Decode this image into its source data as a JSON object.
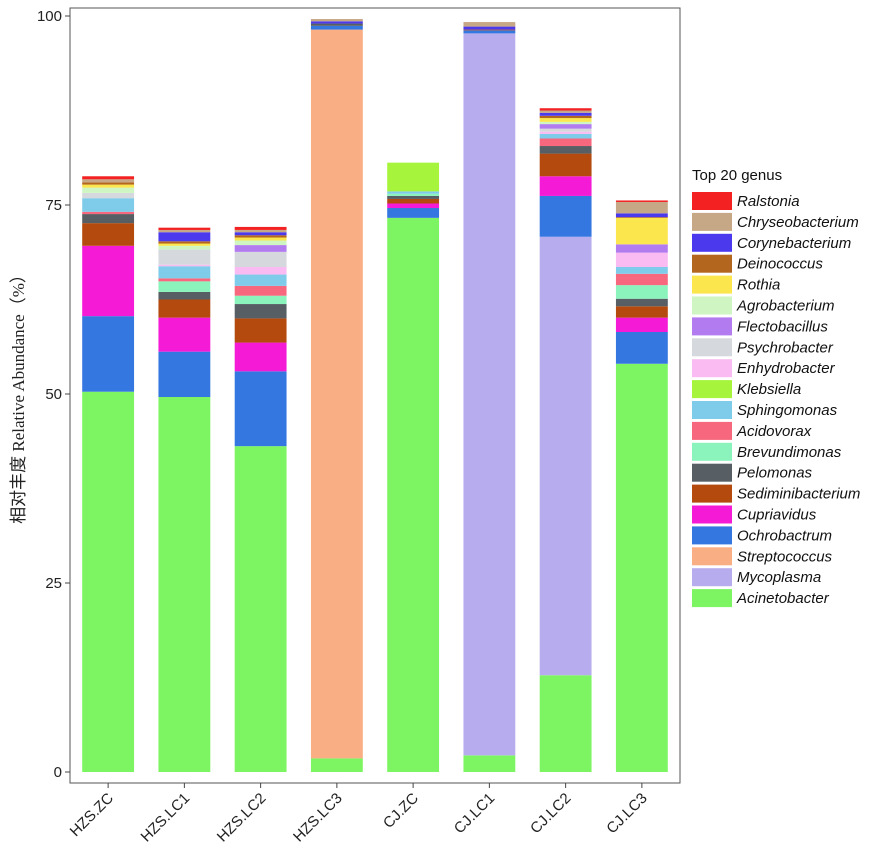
{
  "chart_data": {
    "type": "bar",
    "stacked": true,
    "title": "",
    "xlabel": "",
    "ylabel": "相对丰度 Relative Abundance（%）",
    "ylim": [
      0,
      100
    ],
    "yticks": [
      0,
      25,
      50,
      75,
      100
    ],
    "grid": false,
    "legend_title": "Top 20 genus",
    "legend_position": "right",
    "categories": [
      "HZS.ZC",
      "HZS.LC1",
      "HZS.LC2",
      "HZS.LC3",
      "CJ.ZC",
      "CJ.LC1",
      "CJ.LC2",
      "CJ.LC3"
    ],
    "series": [
      {
        "name": "Acinetobacter",
        "color": "#7DF562",
        "values": [
          50.3,
          49.6,
          43.1,
          1.8,
          73.3,
          2.2,
          12.8,
          54.0
        ]
      },
      {
        "name": "Mycoplasma",
        "color": "#B7ADEE",
        "values": [
          0,
          0,
          0,
          0,
          0,
          95.5,
          58.0,
          0
        ]
      },
      {
        "name": "Streptococcus",
        "color": "#F9AE84",
        "values": [
          0,
          0,
          0,
          96.4,
          0,
          0,
          0,
          0
        ]
      },
      {
        "name": "Ochrobactrum",
        "color": "#3577E0",
        "values": [
          10.0,
          6.0,
          9.9,
          0.5,
          1.3,
          0.4,
          5.4,
          4.2
        ]
      },
      {
        "name": "Cupriavidus",
        "color": "#F41AD6",
        "values": [
          9.3,
          4.5,
          3.8,
          0,
          0.6,
          0,
          2.6,
          1.9
        ]
      },
      {
        "name": "Sediminibacterium",
        "color": "#B54A0E",
        "values": [
          3.0,
          2.4,
          3.2,
          0,
          0.6,
          0.1,
          3.0,
          1.5
        ]
      },
      {
        "name": "Pelomonas",
        "color": "#575F64",
        "values": [
          1.2,
          1.0,
          1.9,
          0.3,
          0.4,
          0,
          1.0,
          1.0
        ]
      },
      {
        "name": "Brevundimonas",
        "color": "#8AF4BC",
        "values": [
          0,
          1.4,
          1.1,
          0,
          0.3,
          0,
          0,
          1.8
        ]
      },
      {
        "name": "Acidovorax",
        "color": "#F7687E",
        "values": [
          0.3,
          0.4,
          1.3,
          0,
          0,
          0,
          1.0,
          1.5
        ]
      },
      {
        "name": "Sphingomonas",
        "color": "#7FCCEA",
        "values": [
          1.8,
          1.6,
          1.5,
          0,
          0.3,
          0,
          0.6,
          0.9
        ]
      },
      {
        "name": "Klebsiella",
        "color": "#A6F53C",
        "values": [
          0,
          0,
          0,
          0,
          3.8,
          0,
          0,
          0
        ]
      },
      {
        "name": "Enhydrobacter",
        "color": "#F9BBF2",
        "values": [
          0,
          0.2,
          1.0,
          0,
          0,
          0,
          0.3,
          1.9
        ]
      },
      {
        "name": "Psychrobacter",
        "color": "#D5D8DC",
        "values": [
          0.7,
          2.0,
          2.0,
          0,
          0,
          0,
          0.4,
          0
        ]
      },
      {
        "name": "Flectobacillus",
        "color": "#B37BF0",
        "values": [
          0,
          0,
          0.9,
          0,
          0,
          0,
          0.6,
          1.1
        ]
      },
      {
        "name": "Agrobacterium",
        "color": "#CEF5C2",
        "values": [
          0.7,
          0.5,
          0.6,
          0,
          0,
          0,
          0.3,
          0
        ]
      },
      {
        "name": "Rothia",
        "color": "#FBE64D",
        "values": [
          0.4,
          0.3,
          0.4,
          0,
          0,
          0,
          0.5,
          3.5
        ]
      },
      {
        "name": "Deinococcus",
        "color": "#B2661E",
        "values": [
          0.3,
          0.3,
          0.3,
          0,
          0,
          0,
          0.3,
          0.1
        ]
      },
      {
        "name": "Corynebacterium",
        "color": "#4B39EE",
        "values": [
          0,
          1.2,
          0.4,
          0.3,
          0,
          0.4,
          0.4,
          0.5
        ]
      },
      {
        "name": "Chryseobacterium",
        "color": "#C7A886",
        "values": [
          0.4,
          0.3,
          0.3,
          0.3,
          0,
          0.6,
          0.3,
          1.5
        ]
      },
      {
        "name": "Ralstonia",
        "color": "#F32121",
        "values": [
          0.4,
          0.3,
          0.4,
          0,
          0,
          0,
          0.3,
          0.2
        ]
      }
    ],
    "legend_order": [
      "Ralstonia",
      "Chryseobacterium",
      "Corynebacterium",
      "Deinococcus",
      "Rothia",
      "Agrobacterium",
      "Flectobacillus",
      "Psychrobacter",
      "Enhydrobacter",
      "Klebsiella",
      "Sphingomonas",
      "Acidovorax",
      "Brevundimonas",
      "Pelomonas",
      "Sediminibacterium",
      "Cupriavidus",
      "Ochrobactrum",
      "Streptococcus",
      "Mycoplasma",
      "Acinetobacter"
    ]
  }
}
